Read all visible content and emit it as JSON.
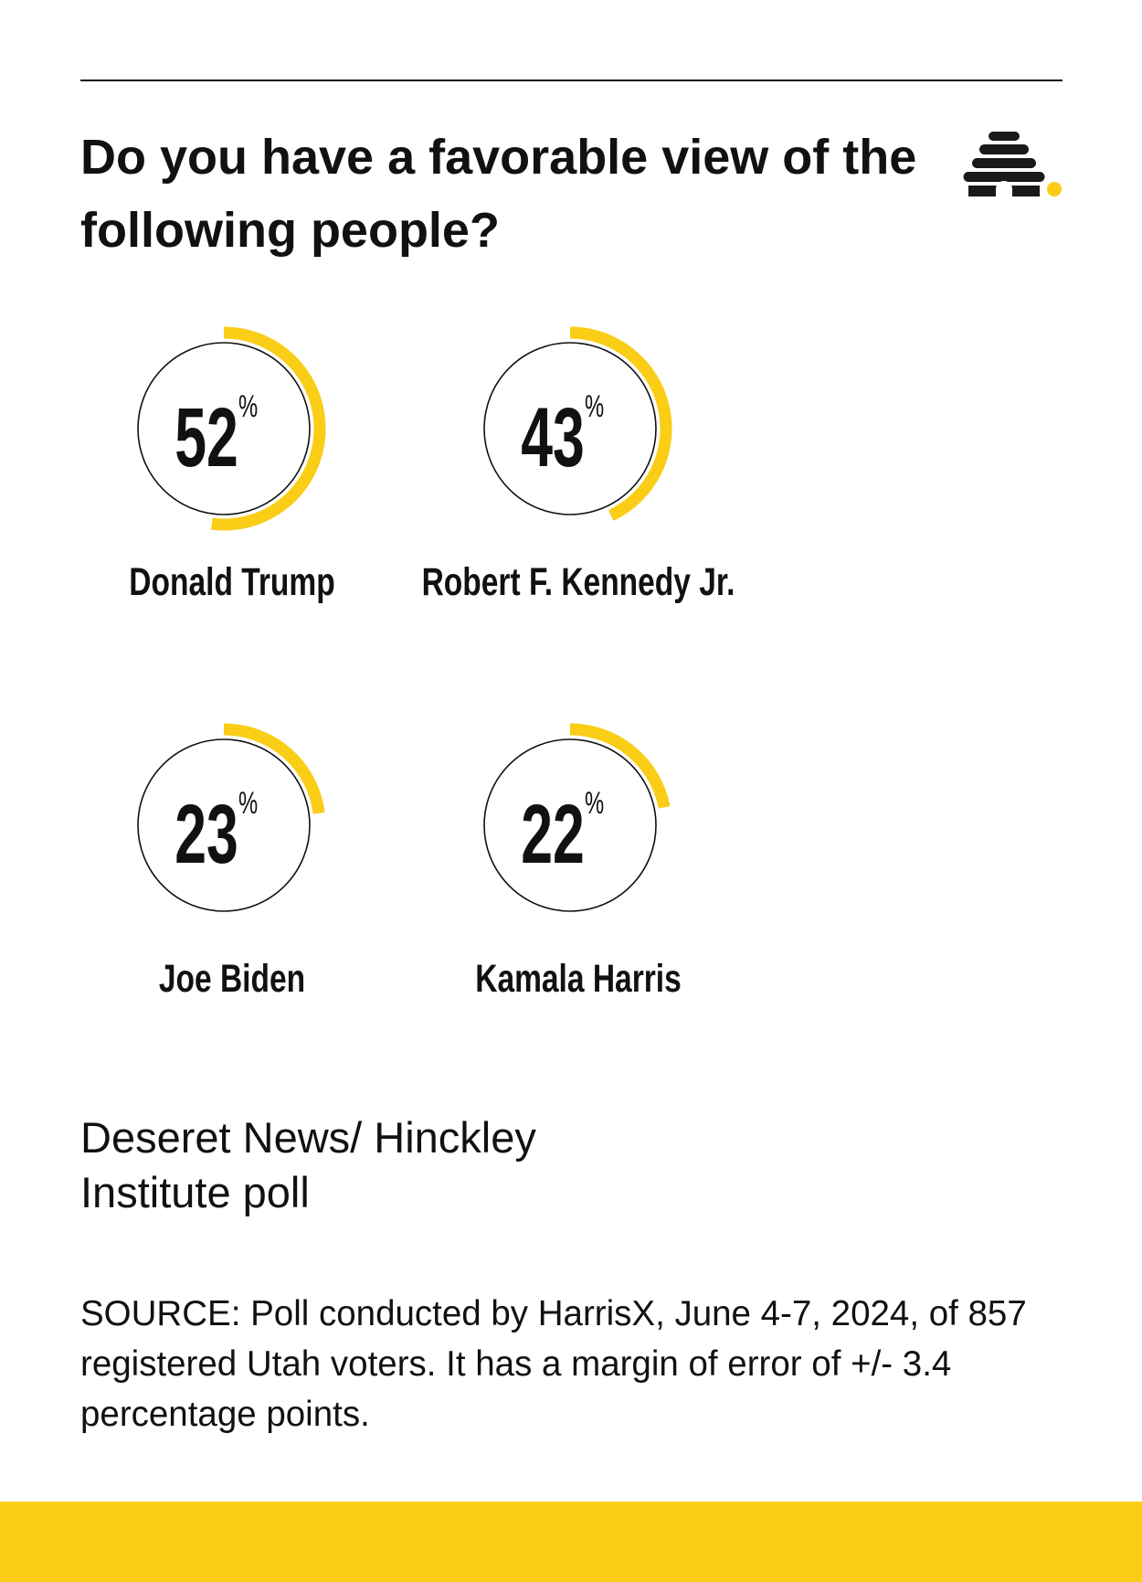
{
  "chart_data": {
    "type": "gauge",
    "title": "Do you have a favorable view of the following people?",
    "categories": [
      "Donald Trump",
      "Robert F. Kennedy Jr.",
      "Joe Biden",
      "Kamala Harris"
    ],
    "values": [
      52,
      43,
      23,
      22
    ],
    "unit": "%",
    "ylim": [
      0,
      100
    ],
    "color": "#facd16",
    "publisher": "Deseret News/ Hinckley Institute poll",
    "source": "SOURCE: Poll conducted by HarrisX, June 4-7, 2024, of 857 registered Utah voters. It has a margin of error of +/- 3.4 percentage points."
  }
}
